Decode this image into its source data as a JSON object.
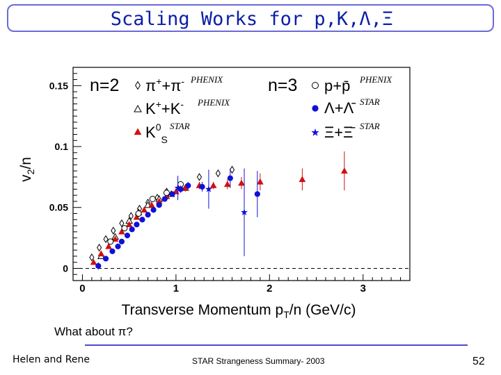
{
  "slide": {
    "title": "Scaling Works for p,K,Λ,Ξ",
    "question": "What about π?",
    "authors": "Helen and Rene",
    "summary": "STAR Strangeness Summary- 2003",
    "page": "52"
  },
  "colors": {
    "accent": "#0b1ea6",
    "frame": "#6a6ad8",
    "rule": "#4a4ad0",
    "star_red": "#d01010",
    "star_blue": "#1010d8"
  },
  "chart_data": {
    "type": "scatter",
    "title": "",
    "xlabel": "Transverse Momentum pT/n (GeV/c)",
    "ylabel": "v2/n",
    "xlim": [
      -0.1,
      3.5
    ],
    "ylim": [
      -0.01,
      0.165
    ],
    "x_ticks": [
      0,
      1,
      2,
      3
    ],
    "x_tick_labels": [
      "0",
      "1",
      "2",
      "3"
    ],
    "y_ticks": [
      0,
      0.05,
      0.1,
      0.15
    ],
    "y_tick_labels": [
      "0",
      "0.05",
      "0.1",
      "0.15"
    ],
    "zero_line": true,
    "legend_groups": [
      "n=2",
      "n=3"
    ],
    "series": [
      {
        "name": "π++π-",
        "source": "PHENIX",
        "marker": "diamond-open",
        "color": "#000000",
        "group": "n=2",
        "points": [
          [
            0.1,
            0.009
          ],
          [
            0.18,
            0.017
          ],
          [
            0.25,
            0.024
          ],
          [
            0.33,
            0.031
          ],
          [
            0.42,
            0.037
          ],
          [
            0.52,
            0.043
          ],
          [
            0.61,
            0.049
          ],
          [
            0.7,
            0.054
          ],
          [
            0.8,
            0.058
          ],
          [
            0.9,
            0.063
          ],
          [
            1.05,
            0.068
          ],
          [
            1.25,
            0.075
          ],
          [
            1.45,
            0.078
          ],
          [
            1.6,
            0.081
          ]
        ]
      },
      {
        "name": "K++K-",
        "source": "PHENIX",
        "marker": "triangle-open",
        "color": "#000000",
        "group": "n=2",
        "points": [
          [
            0.2,
            0.01
          ],
          [
            0.35,
            0.026
          ],
          [
            0.5,
            0.039
          ],
          [
            0.6,
            0.046
          ],
          [
            0.7,
            0.052
          ],
          [
            0.82,
            0.057
          ],
          [
            0.95,
            0.061
          ],
          [
            1.1,
            0.066
          ]
        ]
      },
      {
        "name": "KS0",
        "source": "STAR",
        "marker": "triangle-filled",
        "color": "#d01010",
        "group": "n=2",
        "points": [
          [
            0.12,
            0.005
          ],
          [
            0.2,
            0.012
          ],
          [
            0.28,
            0.018
          ],
          [
            0.35,
            0.024
          ],
          [
            0.42,
            0.03
          ],
          [
            0.5,
            0.036
          ],
          [
            0.58,
            0.042
          ],
          [
            0.66,
            0.048
          ],
          [
            0.74,
            0.052
          ],
          [
            0.82,
            0.055
          ],
          [
            0.9,
            0.059
          ],
          [
            1.0,
            0.063
          ],
          [
            1.1,
            0.066
          ],
          [
            1.25,
            0.068
          ],
          [
            1.4,
            0.068
          ],
          [
            1.55,
            0.069
          ],
          [
            1.7,
            0.07
          ],
          [
            1.9,
            0.071
          ],
          [
            2.35,
            0.073
          ],
          [
            2.8,
            0.08
          ]
        ],
        "yerr": [
          0.002,
          0.002,
          0.002,
          0.002,
          0.002,
          0.002,
          0.002,
          0.002,
          0.002,
          0.002,
          0.002,
          0.002,
          0.003,
          0.003,
          0.003,
          0.004,
          0.005,
          0.007,
          0.009,
          0.016
        ]
      },
      {
        "name": "p+p̄",
        "source": "PHENIX",
        "marker": "circle-open",
        "color": "#000000",
        "group": "n=3",
        "points": [
          [
            0.3,
            0.022
          ],
          [
            0.45,
            0.033
          ],
          [
            0.6,
            0.045
          ],
          [
            0.75,
            0.057
          ],
          [
            0.9,
            0.062
          ],
          [
            1.05,
            0.069
          ]
        ]
      },
      {
        "name": "Λ+Λ̄",
        "source": "STAR",
        "marker": "circle-filled",
        "color": "#1010d8",
        "group": "n=3",
        "points": [
          [
            0.17,
            0.002
          ],
          [
            0.25,
            0.008
          ],
          [
            0.32,
            0.014
          ],
          [
            0.38,
            0.018
          ],
          [
            0.42,
            0.022
          ],
          [
            0.48,
            0.027
          ],
          [
            0.53,
            0.032
          ],
          [
            0.58,
            0.036
          ],
          [
            0.64,
            0.04
          ],
          [
            0.7,
            0.044
          ],
          [
            0.76,
            0.048
          ],
          [
            0.82,
            0.052
          ],
          [
            0.88,
            0.057
          ],
          [
            0.96,
            0.061
          ],
          [
            1.05,
            0.065
          ],
          [
            1.13,
            0.068
          ],
          [
            1.28,
            0.067
          ],
          [
            1.58,
            0.074
          ],
          [
            1.87,
            0.061
          ]
        ],
        "yerr": [
          0.003,
          0.002,
          0.002,
          0.002,
          0.002,
          0.002,
          0.002,
          0.002,
          0.002,
          0.002,
          0.002,
          0.002,
          0.002,
          0.002,
          0.003,
          0.003,
          0.004,
          0.008,
          0.019
        ]
      },
      {
        "name": "Ξ+Ξ̄",
        "source": "STAR",
        "marker": "star-filled",
        "color": "#1010d8",
        "group": "n=3",
        "points": [
          [
            1.02,
            0.066
          ],
          [
            1.35,
            0.065
          ],
          [
            1.73,
            0.046
          ]
        ],
        "yerr": [
          0.01,
          0.016,
          0.036
        ]
      }
    ]
  }
}
